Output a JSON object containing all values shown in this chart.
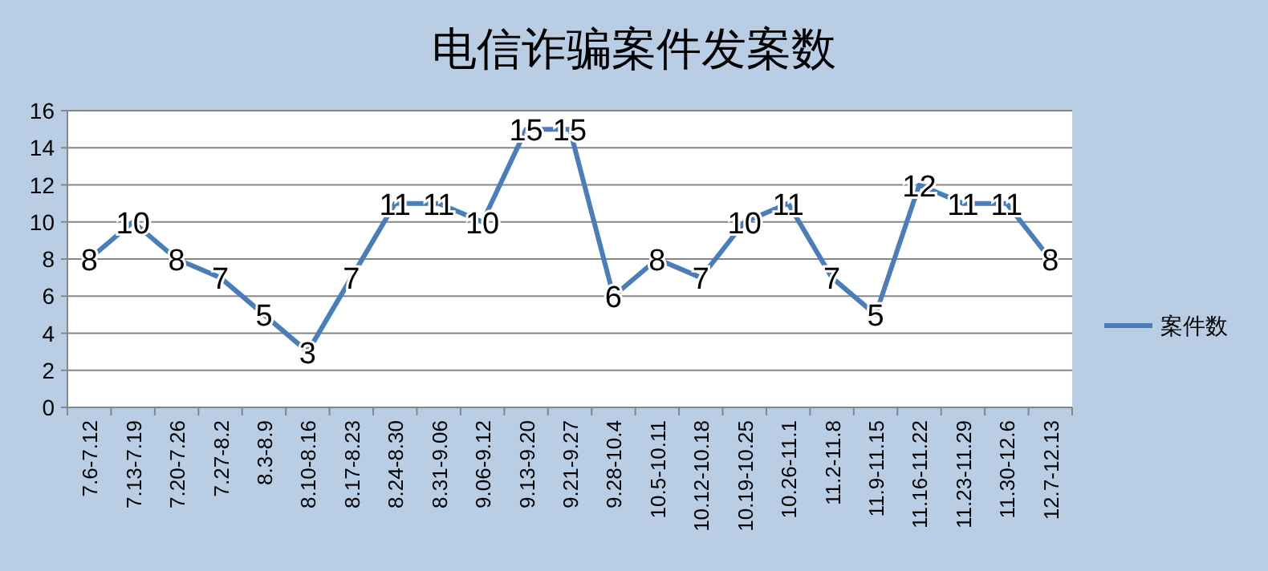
{
  "chart_data": {
    "type": "line",
    "title": "电信诈骗案件发案数",
    "categories": [
      "7.6-7.12",
      "7.13-7.19",
      "7.20-7.26",
      "7.27-8.2",
      "8.3-8.9",
      "8.10-8.16",
      "8.17-8.23",
      "8.24-8.30",
      "8.31-9.06",
      "9.06-9.12",
      "9.13-9.20",
      "9.21-9.27",
      "9.28-10.4",
      "10.5-10.11",
      "10.12-10.18",
      "10.19-10.25",
      "10.26-11.1",
      "11.2-11.8",
      "11.9-11.15",
      "11.16-11.22",
      "11.23-11.29",
      "11.30-12.6",
      "12.7-12.13"
    ],
    "series": [
      {
        "name": "案件数",
        "color": "#4a7ebb",
        "values": [
          8,
          10,
          8,
          7,
          5,
          3,
          7,
          11,
          11,
          10,
          15,
          15,
          6,
          8,
          7,
          10,
          11,
          7,
          5,
          12,
          11,
          11,
          8
        ]
      }
    ],
    "ylim": [
      0,
      16
    ],
    "yticks": [
      0,
      2,
      4,
      6,
      8,
      10,
      12,
      14,
      16
    ],
    "grid": "y",
    "legend": "right",
    "data_labels": true,
    "marker": "none",
    "line_style": "solid"
  }
}
